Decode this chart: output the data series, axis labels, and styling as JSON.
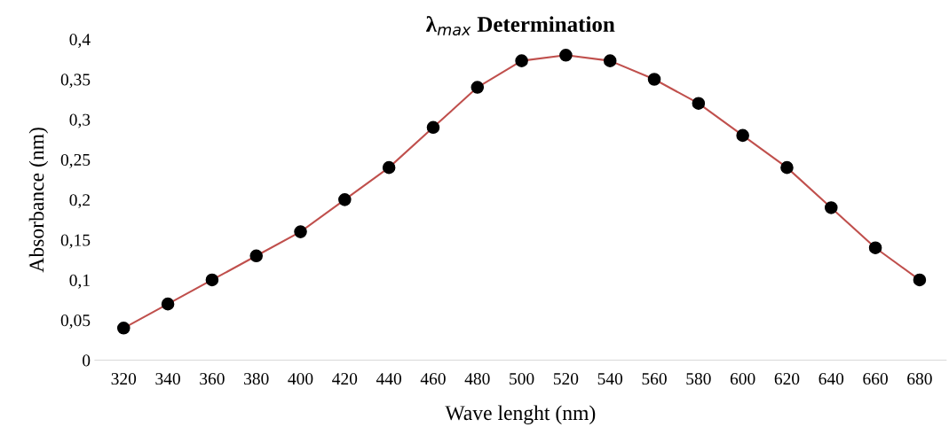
{
  "chart_data": {
    "type": "line",
    "title": "λ$_{max}$ Determination",
    "xlabel": "Wave lenght (nm)",
    "ylabel": "Absorbance (nm)",
    "categories": [
      "320",
      "340",
      "360",
      "380",
      "400",
      "420",
      "440",
      "460",
      "480",
      "500",
      "520",
      "540",
      "560",
      "580",
      "600",
      "620",
      "640",
      "660",
      "680"
    ],
    "series": [
      {
        "color": "#c0504d",
        "colors": [
          "#000000",
          "#000000",
          "#000000",
          "#000000",
          "#000000",
          "#000000",
          "#000000",
          "#000000",
          "#000000",
          "#000000",
          "#000000",
          "#000000",
          "#000000",
          "#000000",
          "#000000",
          "#000000",
          "#000000",
          "#000000",
          "#000000"
        ],
        "values": [
          0.04,
          0.07,
          0.1,
          0.13,
          0.16,
          0.2,
          0.24,
          0.29,
          0.34,
          0.373,
          0.38,
          0.373,
          0.35,
          0.32,
          0.28,
          0.24,
          0.19,
          0.14,
          0.1
        ]
      }
    ],
    "ylim": [
      0,
      0.4
    ],
    "yticks": [
      0,
      {
        "value": 0.05,
        "label": "0,05"
      },
      {
        "value": 0.1,
        "label": "0,1"
      },
      {
        "value": 0.15,
        "label": "0,15"
      },
      {
        "value": 0.2,
        "label": "0,2"
      },
      {
        "value": 0.25,
        "label": "0,25"
      },
      {
        "value": 0.3,
        "label": "0,3"
      },
      {
        "value": 0.35,
        "label": "0,35"
      },
      {
        "value": 0.4,
        "label": "0,4"
      }
    ],
    "marker": "circle",
    "line_style": "solid",
    "grid": false,
    "legend": false
  }
}
